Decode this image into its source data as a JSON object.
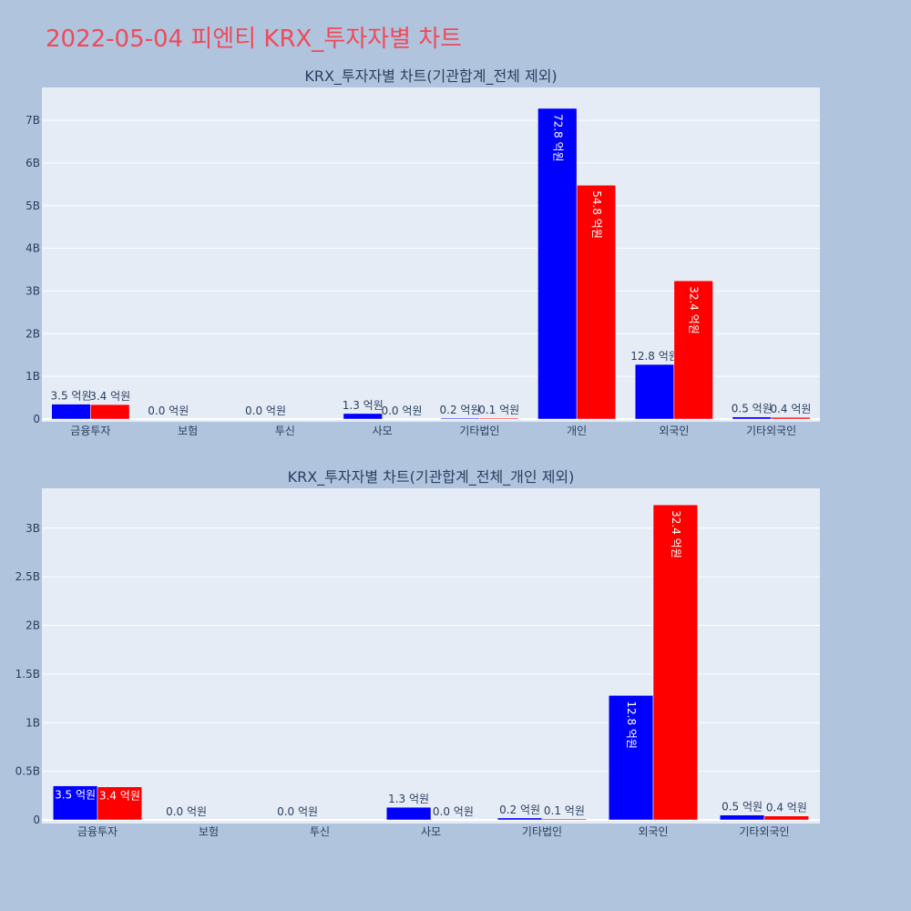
{
  "page": {
    "title": "2022-05-04 피엔티 KRX_투자자별 차트",
    "colors": {
      "background": "#b0c4de",
      "plot_bg": "#e5ecf6",
      "buy": "#0000ff",
      "sell": "#ff0000",
      "title": "#ef4a5a"
    }
  },
  "chart_data": [
    {
      "type": "bar",
      "title": "KRX_투자자별 차트(기관합계_전체 제외)",
      "categories": [
        "금융투자",
        "보험",
        "투신",
        "사모",
        "기타법인",
        "개인",
        "외국인",
        "기타외국인"
      ],
      "series": [
        {
          "color": "#0000ff",
          "values": [
            350000000,
            0,
            0,
            130000000,
            20000000,
            7280000000,
            1280000000,
            50000000
          ],
          "labels": [
            "3.5 억원",
            "0.0 억원",
            "0.0 억원",
            "1.3 억원",
            "0.2 억원",
            "72.8 억원",
            "12.8 억원",
            "0.5 억원"
          ]
        },
        {
          "color": "#ff0000",
          "values": [
            340000000,
            0,
            0,
            0,
            10000000,
            5480000000,
            3240000000,
            40000000
          ],
          "labels": [
            "3.4 억원",
            "",
            "",
            "0.0 억원",
            "0.1 억원",
            "54.8 억원",
            "32.4 억원",
            "0.4 억원"
          ]
        }
      ],
      "yticks": [
        0,
        1000000000,
        2000000000,
        3000000000,
        4000000000,
        5000000000,
        6000000000,
        7000000000
      ],
      "ytick_labels": [
        "0",
        "1B",
        "2B",
        "3B",
        "4B",
        "5B",
        "6B",
        "7B"
      ],
      "ylim": [
        0,
        7770000000
      ],
      "grid": true
    },
    {
      "type": "bar",
      "title": "KRX_투자자별 차트(기관합계_전체_개인 제외)",
      "categories": [
        "금융투자",
        "보험",
        "투신",
        "사모",
        "기타법인",
        "외국인",
        "기타외국인"
      ],
      "series": [
        {
          "color": "#0000ff",
          "values": [
            350000000,
            0,
            0,
            130000000,
            20000000,
            1280000000,
            50000000
          ],
          "labels": [
            "3.5 억원",
            "0.0 억원",
            "0.0 억원",
            "1.3 억원",
            "0.2 억원",
            "12.8 억원",
            "0.5 억원"
          ]
        },
        {
          "color": "#ff0000",
          "values": [
            340000000,
            0,
            0,
            0,
            10000000,
            3240000000,
            40000000
          ],
          "labels": [
            "3.4 억원",
            "",
            "",
            "0.0 억원",
            "0.1 억원",
            "32.4 억원",
            "0.4 억원"
          ]
        }
      ],
      "yticks": [
        0,
        500000000,
        1000000000,
        1500000000,
        2000000000,
        2500000000,
        3000000000
      ],
      "ytick_labels": [
        "0",
        "0.5B",
        "1B",
        "1.5B",
        "2B",
        "2.5B",
        "3B"
      ],
      "ylim": [
        0,
        3410000000
      ],
      "grid": true
    }
  ]
}
